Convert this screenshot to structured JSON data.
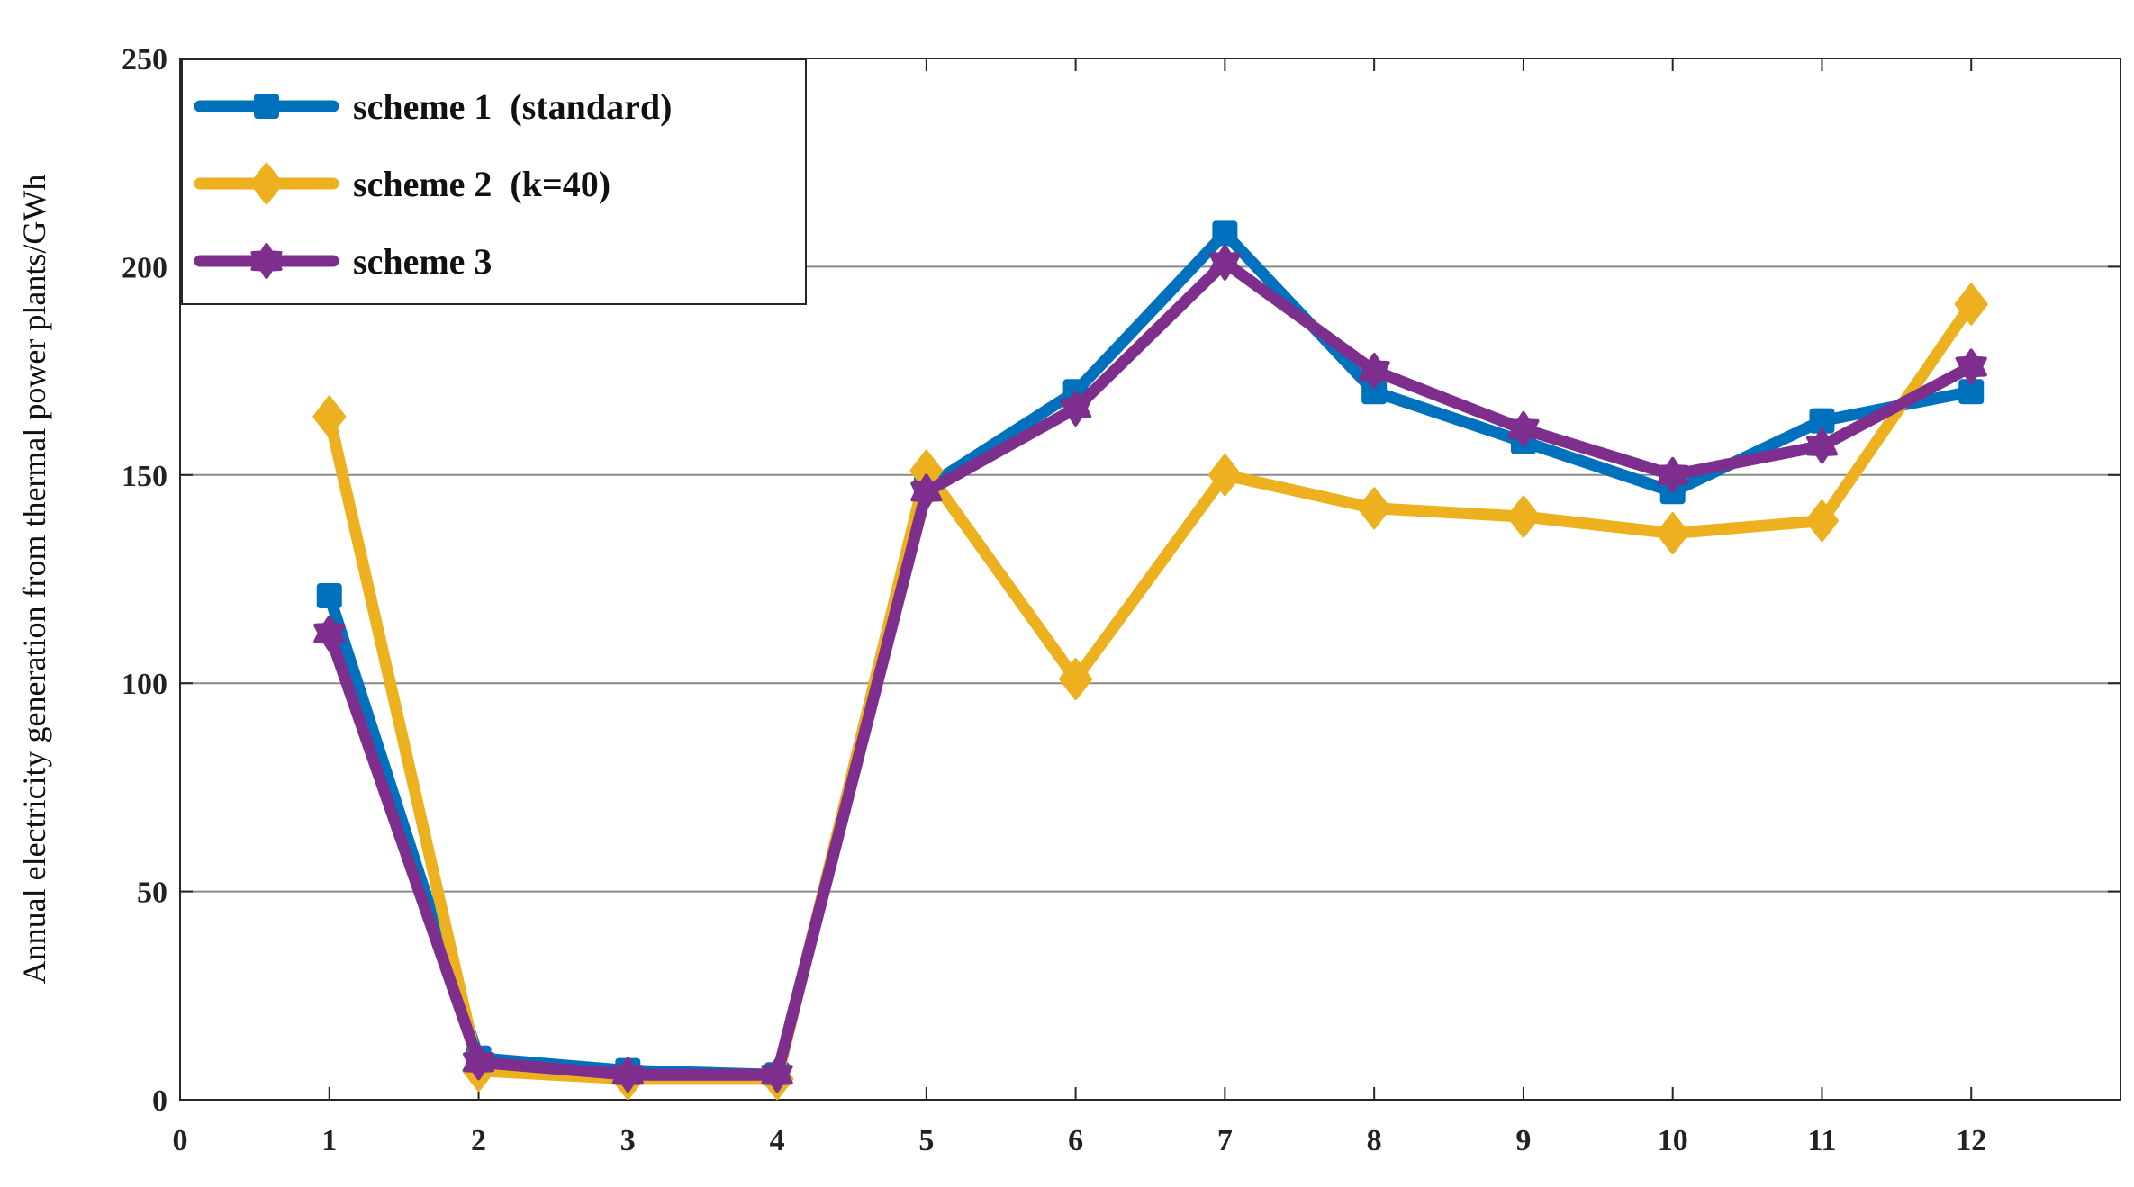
{
  "chart_data": {
    "type": "line",
    "title": "",
    "xlabel": "",
    "ylabel": "Annual electricity generation from thermal power plants/GWh",
    "xlim": [
      0,
      13
    ],
    "ylim": [
      0,
      250
    ],
    "x_ticks": [
      0,
      1,
      2,
      3,
      4,
      5,
      6,
      7,
      8,
      9,
      10,
      11,
      12
    ],
    "y_ticks": [
      0,
      50,
      100,
      150,
      200,
      250
    ],
    "grid": "horizontal",
    "legend_position": "top-left",
    "x": [
      1,
      2,
      3,
      4,
      5,
      6,
      7,
      8,
      9,
      10,
      11,
      12
    ],
    "series": [
      {
        "name": "scheme 1  (standard)",
        "color": "#0072BD",
        "marker": "square",
        "values": [
          121,
          10,
          7,
          6,
          147,
          170,
          208,
          170,
          158,
          146,
          163,
          170
        ]
      },
      {
        "name": "scheme 2  (k=40)",
        "color": "#EDB120",
        "marker": "diamond",
        "values": [
          164,
          7,
          5,
          5,
          151,
          101,
          150,
          142,
          140,
          136,
          139,
          191
        ]
      },
      {
        "name": "scheme 3",
        "color": "#7E2F8E",
        "marker": "hexagram",
        "values": [
          112,
          9,
          6,
          6,
          146,
          166,
          201,
          175,
          161,
          150,
          157,
          176
        ]
      }
    ]
  }
}
